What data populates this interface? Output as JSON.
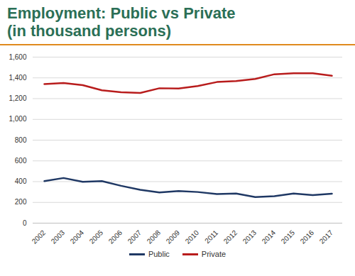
{
  "chart_data": {
    "type": "line",
    "title": "Employment: Public vs Private",
    "subtitle": "(in thousand persons)",
    "categories": [
      "2002",
      "2003",
      "2004",
      "2005",
      "2006",
      "2007",
      "2008",
      "2009",
      "2010",
      "2011",
      "2012",
      "2013",
      "2014",
      "2015",
      "2016",
      "2017"
    ],
    "series": [
      {
        "name": "Public",
        "color": "#1f3864",
        "values": [
          405,
          435,
          398,
          405,
          360,
          322,
          295,
          310,
          300,
          280,
          285,
          252,
          260,
          285,
          270,
          283
        ]
      },
      {
        "name": "Private",
        "color": "#b81c1c",
        "values": [
          1340,
          1350,
          1330,
          1280,
          1262,
          1255,
          1300,
          1298,
          1322,
          1360,
          1370,
          1390,
          1435,
          1445,
          1445,
          1420
        ]
      }
    ],
    "ylim": [
      0,
      1600
    ],
    "yticks": [
      0,
      200,
      400,
      600,
      800,
      {
        "value": 1000,
        "label": "1,000"
      },
      {
        "value": 1200,
        "label": "1,200"
      },
      {
        "value": 1400,
        "label": "1,400"
      },
      {
        "value": 1600,
        "label": "1,600"
      }
    ],
    "grid": true,
    "legend": "bottom"
  }
}
